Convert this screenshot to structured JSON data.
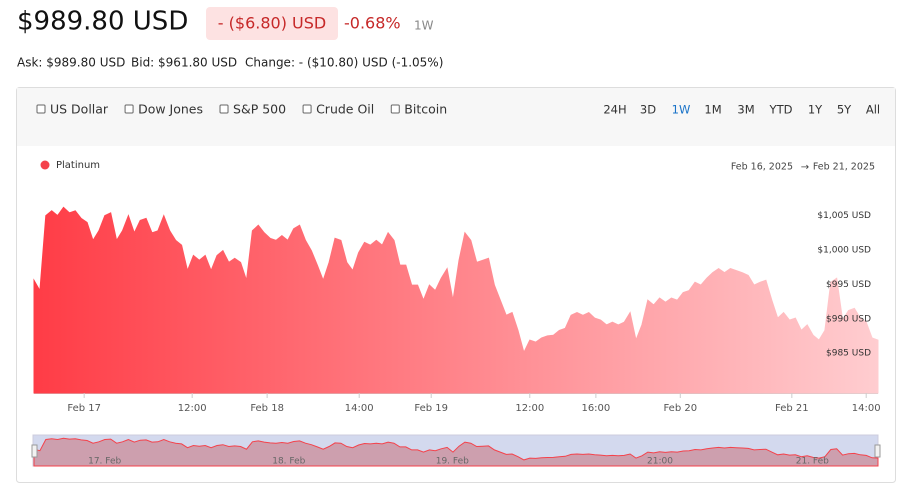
{
  "header": {
    "price": "$989.80 USD",
    "change": "- ($6.80) USD",
    "change_pct": "-0.68%",
    "period": "1W",
    "ask": "Ask: $989.80 USD",
    "bid": "Bid: $961.80 USD",
    "change_detail": "Change: - ($10.80) USD (-1.05%)"
  },
  "compare": [
    "US Dollar",
    "Dow Jones",
    "S&P 500",
    "Crude Oil",
    "Bitcoin"
  ],
  "ranges": [
    "24H",
    "3D",
    "1W",
    "1M",
    "3M",
    "YTD",
    "1Y",
    "5Y",
    "All"
  ],
  "active_range": 2,
  "chart_data": {
    "type": "area",
    "date_from": "Feb 16, 2025",
    "date_to": "Feb 21, 2025",
    "series": [
      {
        "name": "Platinum",
        "color": "#f4424b",
        "values": [
          995.6,
          994.1,
          1005,
          1005.7,
          1005,
          1006.2,
          1005.4,
          1005.7,
          1004.6,
          1004.0,
          1001.4,
          1002.8,
          1005,
          1005.4,
          1001.4,
          1002.8,
          1005,
          1002.5,
          1004.3,
          1004.6,
          1002.5,
          1002.8,
          1005,
          1002.8,
          1001.4,
          1000.7,
          997,
          999.2,
          998.5,
          999.2,
          997,
          999.2,
          999.9,
          998.2,
          998.8,
          998.2,
          995.6,
          1002.8,
          1003.6,
          1002.5,
          1001.7,
          1001.4,
          1002.1,
          1001.4,
          1003.1,
          1003.6,
          1001.4,
          999.9,
          997.8,
          995.6,
          998.2,
          1001.7,
          1001.4,
          998.2,
          997,
          999.6,
          1001.1,
          1000.7,
          1001.4,
          1000.7,
          1002.5,
          1001.4,
          997.8,
          997.8,
          994.9,
          994.9,
          992.7,
          994.9,
          994.1,
          995.9,
          997.3,
          992.7,
          998.5,
          1002.5,
          1001.4,
          998.2,
          998.5,
          998.8,
          994.9,
          992.7,
          990.5,
          990.9,
          988.3,
          985.1,
          986.9,
          986.6,
          987.2,
          987.5,
          987.6,
          988.3,
          988.6,
          990.5,
          990.9,
          990.5,
          990.9,
          990.1,
          989.8,
          989.1,
          989.5,
          989.1,
          989.5,
          990.9,
          986.9,
          989.1,
          992.7,
          992,
          993,
          992.4,
          993,
          992.7,
          993.8,
          994.1,
          995.3,
          994.9,
          995.9,
          996.7,
          997.3,
          996.7,
          997.3,
          997,
          996.7,
          996.3,
          994.9,
          995.3,
          995.6,
          992.7,
          990.1,
          990.9,
          989.8,
          990.1,
          988.3,
          989.1,
          987.6,
          986.9,
          988.3,
          995.3,
          995.9,
          989.8,
          991.2,
          991.5,
          990.1,
          989.5,
          987.2,
          986.9
        ]
      }
    ],
    "xlim": [
      0,
      143
    ],
    "xticks": [
      {
        "value": 8.5,
        "label": "Feb 17"
      },
      {
        "value": 26.8,
        "label": "12:00"
      },
      {
        "value": 39.5,
        "label": "Feb 18"
      },
      {
        "value": 55.1,
        "label": "14:00"
      },
      {
        "value": 67.3,
        "label": "Feb 19"
      },
      {
        "value": 84,
        "label": "12:00"
      },
      {
        "value": 95.2,
        "label": "16:00"
      },
      {
        "value": 109.5,
        "label": "Feb 20"
      },
      {
        "value": 128.4,
        "label": "Feb 21"
      },
      {
        "value": 141,
        "label": "14:00"
      }
    ],
    "ylim": [
      979.2,
      1008
    ],
    "yticks": [
      {
        "value": 985,
        "label": "$985 USD"
      },
      {
        "value": 990,
        "label": "$990 USD"
      },
      {
        "value": 995,
        "label": "$995 USD"
      },
      {
        "value": 1000,
        "label": "$1,000 USD"
      },
      {
        "value": 1005,
        "label": "$1,005 USD"
      }
    ],
    "navigator_ticks": [
      {
        "value": 11.2,
        "label": "17. Feb"
      },
      {
        "value": 42.4,
        "label": "18. Feb"
      },
      {
        "value": 70.1,
        "label": "19. Feb"
      },
      {
        "value": 105.9,
        "label": "21:00"
      },
      {
        "value": 131.1,
        "label": "21. Feb"
      }
    ]
  }
}
